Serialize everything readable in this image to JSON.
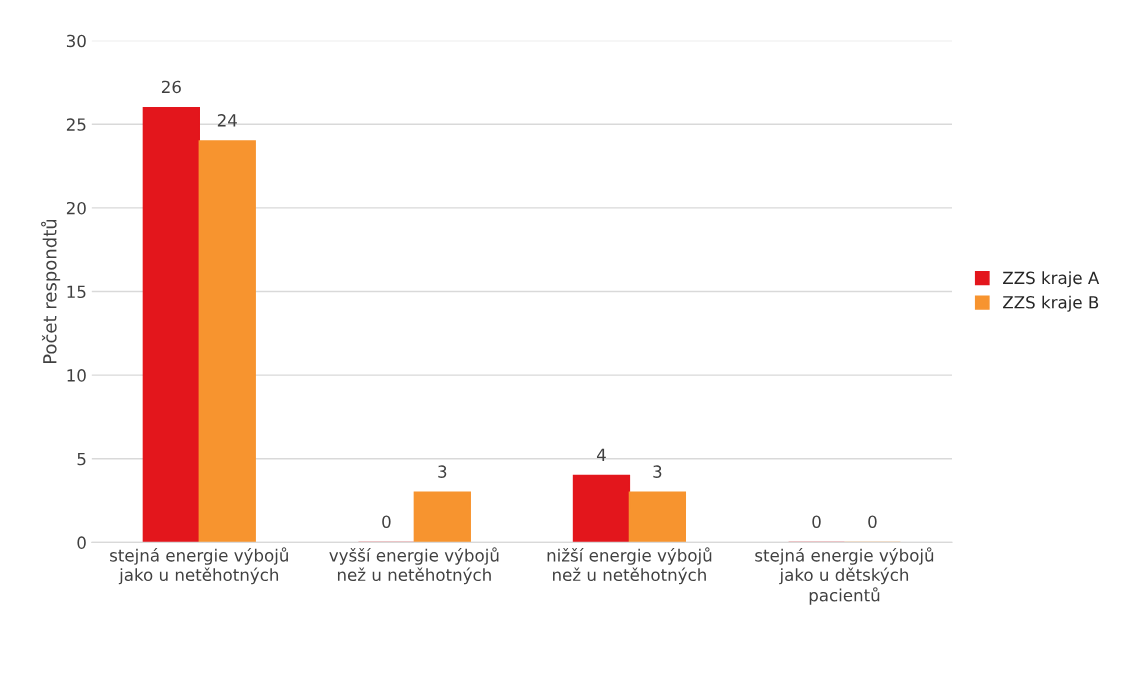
{
  "chart_data": {
    "type": "bar",
    "ylabel": "Počet respondtů",
    "categories": [
      "stejná energie výbojů\njako u netěhotných",
      "vyšší energie výbojů\nnež u netěhotných",
      "nižší energie výbojů\nnež u netěhotných",
      "stejná energie výbojů\njako u dětských\npacientů"
    ],
    "series": [
      {
        "name": "ZZS kraje A",
        "color": "#e3161c",
        "values": [
          26,
          0,
          4,
          0
        ]
      },
      {
        "name": "ZZS kraje B",
        "color": "#f7942f",
        "values": [
          24,
          3,
          3,
          0
        ]
      }
    ],
    "ylim": [
      0,
      30
    ],
    "yticks": [
      0,
      5,
      10,
      15,
      20,
      25,
      30
    ],
    "grid": "y",
    "legend": "right",
    "data_labels": true
  }
}
